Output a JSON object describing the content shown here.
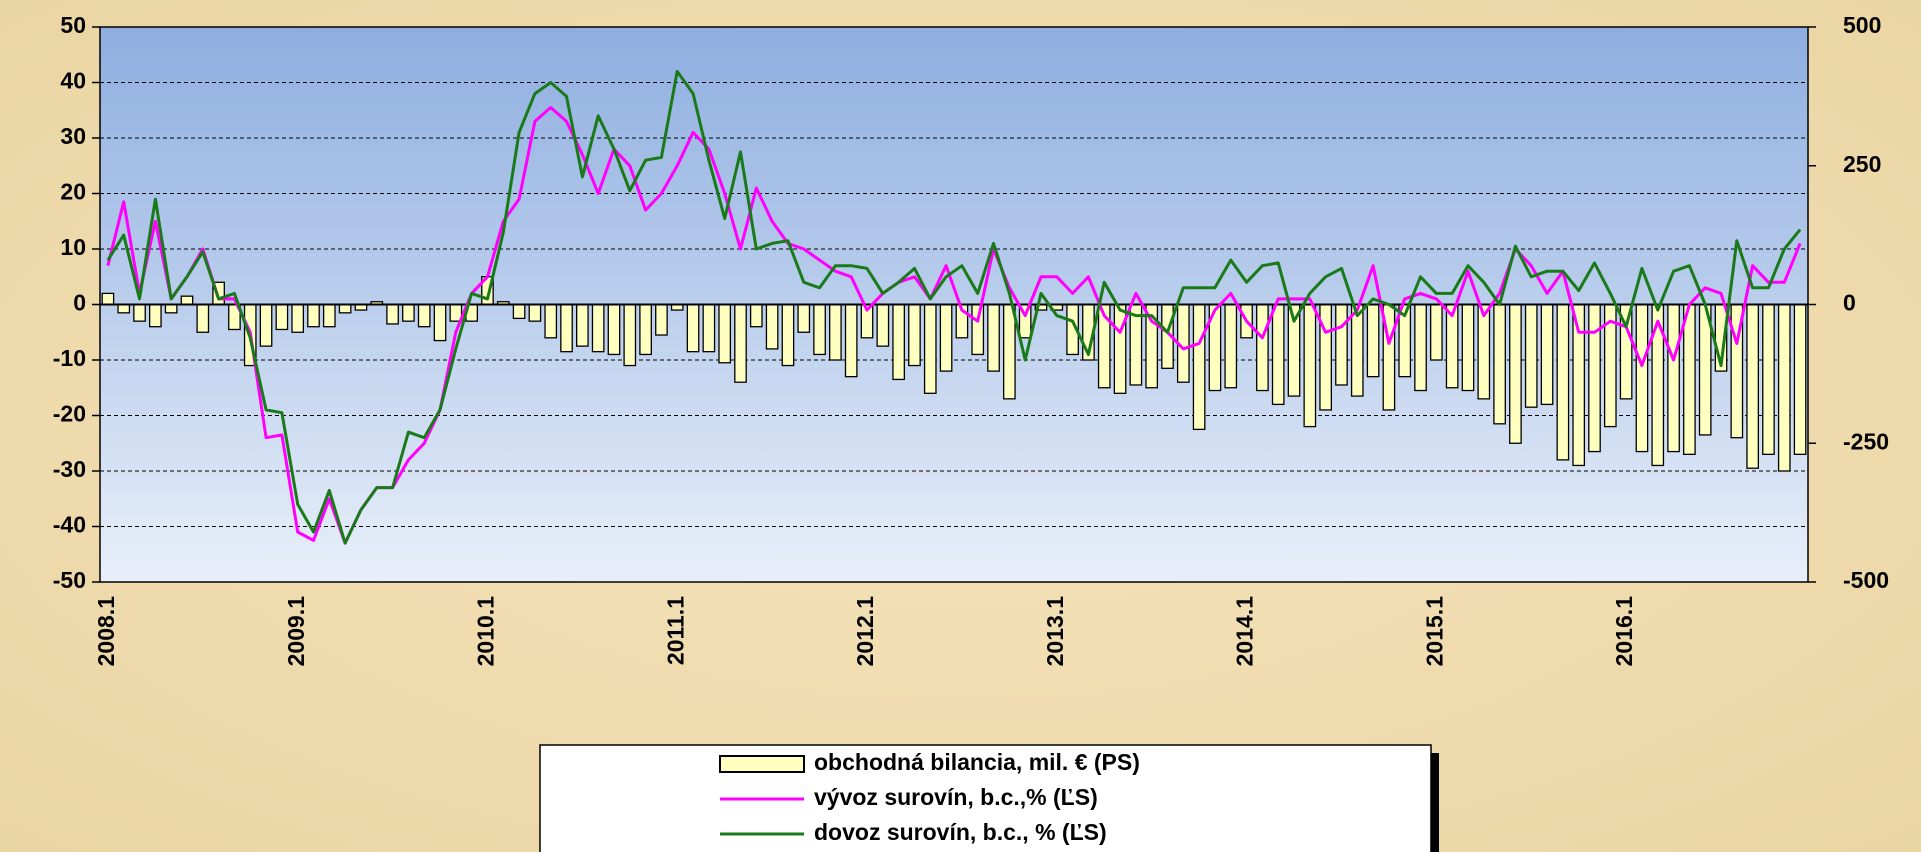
{
  "chart_data": {
    "type": "bar-line",
    "categories": [
      "2008.1",
      null,
      null,
      null,
      null,
      null,
      null,
      null,
      null,
      null,
      null,
      null,
      "2009.1",
      null,
      null,
      null,
      null,
      null,
      null,
      null,
      null,
      null,
      null,
      null,
      "2010.1",
      null,
      null,
      null,
      null,
      null,
      null,
      null,
      null,
      null,
      null,
      null,
      "2011.1",
      null,
      null,
      null,
      null,
      null,
      null,
      null,
      null,
      null,
      null,
      null,
      "2012.1",
      null,
      null,
      null,
      null,
      null,
      null,
      null,
      null,
      null,
      null,
      null,
      "2013.1",
      null,
      null,
      null,
      null,
      null,
      null,
      null,
      null,
      null,
      null,
      null,
      "2014.1",
      null,
      null,
      null,
      null,
      null,
      null,
      null,
      null,
      null,
      null,
      null,
      "2015.1",
      null,
      null,
      null,
      null,
      null,
      null,
      null,
      null,
      null,
      null,
      null,
      "2016.1",
      null,
      null,
      null,
      null,
      null,
      null,
      null,
      null,
      null,
      null,
      null
    ],
    "ylim": [
      -50,
      50
    ],
    "yticks": [
      -50,
      -40,
      -30,
      -20,
      -10,
      0,
      10,
      20,
      30,
      40,
      50
    ],
    "y2lim": [
      -500,
      500
    ],
    "y2ticks": [
      -500,
      -250,
      0,
      250,
      500
    ],
    "grid": true,
    "series": [
      {
        "name": "obchodná bilancia, mil. € (PS)",
        "type": "bar",
        "axis": "y2",
        "color": "#ffffc0",
        "values": [
          20,
          -15,
          -30,
          -40,
          -15,
          15,
          -50,
          40,
          -45,
          -110,
          -75,
          -45,
          -50,
          -40,
          -40,
          -15,
          -10,
          5,
          -35,
          -30,
          -40,
          -65,
          -30,
          -30,
          50,
          5,
          -25,
          -30,
          -60,
          -85,
          -75,
          -85,
          -90,
          -110,
          -90,
          -55,
          -10,
          -85,
          -85,
          -105,
          -140,
          -40,
          -80,
          -110,
          -50,
          -90,
          -100,
          -130,
          -60,
          -75,
          -135,
          -110,
          -160,
          -120,
          -60,
          -90,
          -120,
          -170,
          -60,
          -10,
          -10,
          -90,
          -100,
          -150,
          -160,
          -145,
          -150,
          -115,
          -140,
          -225,
          -155,
          -150,
          -60,
          -155,
          -180,
          -165,
          -220,
          -190,
          -145,
          -165,
          -130,
          -190,
          -130,
          -155,
          -100,
          -150,
          -155,
          -170,
          -215,
          -250,
          -185,
          -180,
          -280,
          -290,
          -265,
          -220,
          -170,
          -265,
          -290,
          -265,
          -270,
          -235,
          -120,
          -240,
          -295,
          -270,
          -300,
          -270
        ]
      },
      {
        "name": "vývoz surovín, b.c.,% (ĽS)",
        "type": "line",
        "axis": "y",
        "color": "#ff00ff",
        "values": [
          7,
          18.5,
          2,
          15,
          1,
          5,
          10,
          1,
          1,
          -5,
          -24,
          -23.5,
          -41,
          -42.5,
          -35,
          -43,
          -37,
          -33,
          -33,
          -28,
          -25,
          -19,
          -5,
          2,
          5,
          15,
          19,
          33,
          35.5,
          33,
          27,
          20,
          28,
          25,
          17,
          20,
          25,
          31,
          28,
          20,
          10,
          21,
          15,
          11,
          10,
          8,
          6,
          5,
          -1,
          2,
          4,
          5,
          1,
          7,
          -1,
          -3,
          10,
          3,
          -2,
          5,
          5,
          2,
          5,
          -2,
          -5,
          2,
          -3,
          -5,
          -8,
          -7,
          -1,
          2,
          -3,
          -6,
          1,
          1,
          1,
          -5,
          -4,
          -1,
          7,
          -7,
          1,
          2,
          1,
          -2,
          6,
          -2,
          2,
          10,
          7,
          2,
          6,
          -5,
          -5,
          -3,
          -4,
          -11,
          -3,
          -10,
          0,
          3,
          2,
          -7,
          7,
          4,
          4,
          11
        ]
      },
      {
        "name": "dovoz surovín, b.c., % (ĽS)",
        "type": "line",
        "axis": "y",
        "color": "#1a7a1a",
        "values": [
          8,
          12.5,
          1,
          19,
          1,
          5,
          9.5,
          1,
          2,
          -6,
          -19,
          -19.5,
          -36,
          -41,
          -33.5,
          -43,
          -37,
          -33,
          -33,
          -23,
          -24,
          -19,
          -8,
          2,
          1,
          13,
          31,
          38,
          40,
          37.5,
          23,
          34,
          28,
          20.5,
          26,
          26.5,
          42,
          38,
          26,
          15.5,
          27.5,
          10,
          11,
          11.5,
          4,
          3,
          7,
          7,
          6.5,
          2,
          4,
          6.5,
          1,
          5,
          7,
          2,
          11,
          2,
          -10,
          2,
          -2,
          -3,
          -9,
          4,
          -1,
          -2,
          -2,
          -5,
          3,
          3,
          3,
          8,
          4,
          7,
          7.5,
          -3,
          2,
          5,
          6.5,
          -2,
          1,
          0,
          -2,
          5,
          2,
          2,
          7,
          4,
          0,
          10.5,
          5,
          6,
          6,
          2.5,
          7.5,
          2,
          -4,
          6.5,
          -1,
          6,
          7,
          0,
          -11,
          11.5,
          3,
          3,
          10,
          13.5
        ]
      }
    ]
  }
}
